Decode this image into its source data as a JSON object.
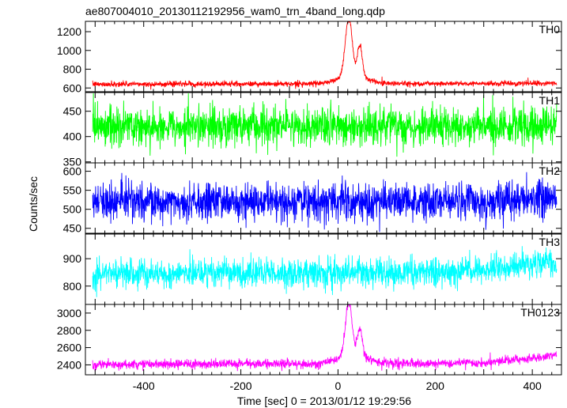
{
  "chart_data": {
    "type": "line",
    "title": "ae807004010_20130112192956_wam0_trn_4band_long.qdp",
    "xlabel": "Time [sec] 0 = 2013/01/12 19:29:56",
    "ylabel": "Counts/sec",
    "xlim": [
      -520,
      460
    ],
    "xticks": [
      -400,
      -200,
      0,
      200,
      400
    ],
    "x_range_data": [
      -505,
      450
    ],
    "panels": [
      {
        "name": "TH0",
        "color": "#ff0000",
        "ylim": [
          560,
          1310
        ],
        "yticks": [
          600,
          800,
          1000,
          1200
        ],
        "baseline": [
          [
            -505,
            640
          ],
          [
            450,
            650
          ]
        ],
        "noise_sd": 14,
        "spike_prob": 0.012,
        "spike_height": 45,
        "features": [
          [
            22,
            620,
            7
          ],
          [
            45,
            330,
            5
          ],
          [
            30,
            90,
            28
          ]
        ]
      },
      {
        "name": "TH1",
        "color": "#00ff00",
        "ylim": [
          348,
          487
        ],
        "yticks": [
          350,
          400,
          450
        ],
        "baseline": [
          [
            -505,
            420
          ],
          [
            450,
            420
          ]
        ],
        "noise_sd": 19,
        "spike_prob": 0,
        "spike_height": 0,
        "features": []
      },
      {
        "name": "TH2",
        "color": "#0000ff",
        "ylim": [
          437,
          622
        ],
        "yticks": [
          450,
          500,
          550,
          600
        ],
        "baseline": [
          [
            -505,
            520
          ],
          [
            320,
            520
          ],
          [
            450,
            535
          ]
        ],
        "noise_sd": 24,
        "spike_prob": 0,
        "spike_height": 0,
        "features": []
      },
      {
        "name": "TH3",
        "color": "#00ffff",
        "ylim": [
          733,
          990
        ],
        "yticks": [
          800,
          900
        ],
        "baseline": [
          [
            -505,
            845
          ],
          [
            200,
            850
          ],
          [
            450,
            885
          ]
        ],
        "noise_sd": 26,
        "spike_prob": 0,
        "spike_height": 0,
        "features": []
      },
      {
        "name": "TH0123",
        "color": "#ff00ff",
        "ylim": [
          2285,
          3100
        ],
        "yticks": [
          2400,
          2600,
          2800,
          3000
        ],
        "baseline": [
          [
            -505,
            2405
          ],
          [
            300,
            2420
          ],
          [
            450,
            2510
          ]
        ],
        "noise_sd": 26,
        "spike_prob": 0.01,
        "spike_height": 60,
        "features": [
          [
            22,
            620,
            7
          ],
          [
            45,
            330,
            5
          ],
          [
            30,
            90,
            28
          ]
        ]
      }
    ],
    "grid": false,
    "legend": "panel labels top-right"
  }
}
